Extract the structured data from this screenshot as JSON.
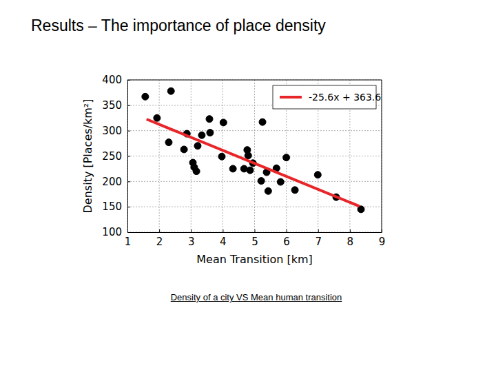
{
  "slide": {
    "title": "Results – The importance of place density",
    "caption": "Density of a city VS Mean human transition"
  },
  "chart_data": {
    "type": "scatter",
    "x_label": "Mean Transition [km]",
    "y_label": "Density [Places/km²]",
    "xlim": [
      1,
      9
    ],
    "xticks": [
      1,
      2,
      3,
      4,
      5,
      6,
      7,
      8,
      9
    ],
    "ylim": [
      100,
      400
    ],
    "yticks": [
      100,
      150,
      200,
      250,
      300,
      350,
      400
    ],
    "grid": true,
    "legend": "upper right",
    "series": [
      {
        "type": "scatter",
        "color": "#000000",
        "marker": "circle",
        "x": [
          1.56,
          1.93,
          2.37,
          2.3,
          2.78,
          2.87,
          3.06,
          3.1,
          3.17,
          3.21,
          3.34,
          3.58,
          3.6,
          4.02,
          3.97,
          4.32,
          4.67,
          4.77,
          4.8,
          4.86,
          4.95,
          5.25,
          5.21,
          5.38,
          5.43,
          5.69,
          5.82,
          6.0,
          6.27,
          6.99,
          7.57,
          8.35
        ],
        "values": [
          367,
          325,
          378,
          277,
          263,
          294,
          237,
          228,
          220,
          270,
          291,
          323,
          296,
          316,
          249,
          225,
          225,
          262,
          251,
          222,
          236,
          317,
          201,
          218,
          181,
          226,
          199,
          247,
          183,
          213,
          169,
          145
        ]
      },
      {
        "type": "line",
        "name": "-25.6x + 363.6",
        "color": "#e8262a",
        "line_style": "solid",
        "x": [
          1.6,
          8.3
        ],
        "values": [
          322.6,
          151.1
        ]
      }
    ]
  }
}
